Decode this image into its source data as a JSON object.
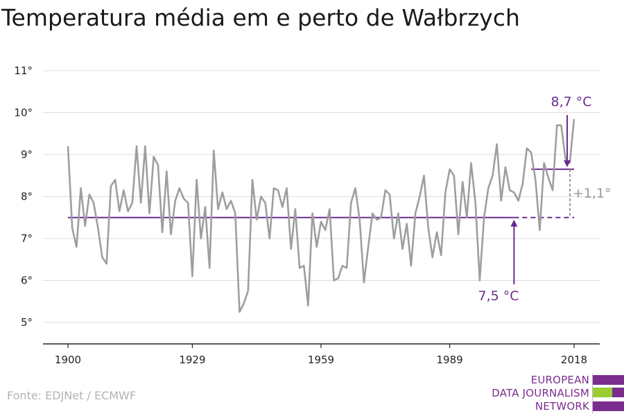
{
  "title": "Temperatura média em e perto de Wałbrzych",
  "source": "Fonte: EDJNet / ECMWF",
  "logo": {
    "lines": [
      "EUROPEAN",
      "DATA JOURNALISM",
      "NETWORK"
    ]
  },
  "colors": {
    "series": "#9e9e9e",
    "accent": "#6b2c91",
    "grid": "#dcdcdc",
    "axis": "#222222",
    "logo_purple": "#7b2d8e",
    "logo_green": "#9acd32"
  },
  "chart_data": {
    "type": "line",
    "x": [
      1900,
      1901,
      1902,
      1903,
      1904,
      1905,
      1906,
      1907,
      1908,
      1909,
      1910,
      1911,
      1912,
      1913,
      1914,
      1915,
      1916,
      1917,
      1918,
      1919,
      1920,
      1921,
      1922,
      1923,
      1924,
      1925,
      1926,
      1927,
      1928,
      1929,
      1930,
      1931,
      1932,
      1933,
      1934,
      1935,
      1936,
      1937,
      1938,
      1939,
      1940,
      1941,
      1942,
      1943,
      1944,
      1945,
      1946,
      1947,
      1948,
      1949,
      1950,
      1951,
      1952,
      1953,
      1954,
      1955,
      1956,
      1957,
      1958,
      1959,
      1960,
      1961,
      1962,
      1963,
      1964,
      1965,
      1966,
      1967,
      1968,
      1969,
      1970,
      1971,
      1972,
      1973,
      1974,
      1975,
      1976,
      1977,
      1978,
      1979,
      1980,
      1981,
      1982,
      1983,
      1984,
      1985,
      1986,
      1987,
      1988,
      1989,
      1990,
      1991,
      1992,
      1993,
      1994,
      1995,
      1996,
      1997,
      1998,
      1999,
      2000,
      2001,
      2002,
      2003,
      2004,
      2005,
      2006,
      2007,
      2008,
      2009,
      2010,
      2011,
      2012,
      2013,
      2014,
      2015,
      2016,
      2017,
      2018
    ],
    "series": [
      {
        "values": [
          9.2,
          7.25,
          6.8,
          8.2,
          7.3,
          8.05,
          7.85,
          7.25,
          6.55,
          6.4,
          8.25,
          8.4,
          7.65,
          8.15,
          7.65,
          7.85,
          9.2,
          7.85,
          9.2,
          7.6,
          8.95,
          8.75,
          7.15,
          8.6,
          7.1,
          7.9,
          8.2,
          7.95,
          7.85,
          6.1,
          8.4,
          7.0,
          7.75,
          6.3,
          9.1,
          7.7,
          8.1,
          7.7,
          7.9,
          7.6,
          5.25,
          5.45,
          5.75,
          8.4,
          7.45,
          8.0,
          7.85,
          7.0,
          8.2,
          8.15,
          7.75,
          8.2,
          6.75,
          7.7,
          6.3,
          6.35,
          5.4,
          7.6,
          6.8,
          7.4,
          7.2,
          7.7,
          6.0,
          6.05,
          6.35,
          6.3,
          7.85,
          8.2,
          7.45,
          5.95,
          6.8,
          7.6,
          7.45,
          7.5,
          8.15,
          8.05,
          7.0,
          7.6,
          6.75,
          7.35,
          6.35,
          7.6,
          8.0,
          8.5,
          7.25,
          6.55,
          7.15,
          6.6,
          8.1,
          8.65,
          8.5,
          7.1,
          8.35,
          7.5,
          8.8,
          7.85,
          6.0,
          7.5,
          8.2,
          8.5,
          9.25,
          7.9,
          8.7,
          8.15,
          8.1,
          7.9,
          8.3,
          9.15,
          9.05,
          8.4,
          7.2,
          8.8,
          8.45,
          8.15,
          9.7,
          9.7,
          8.9,
          8.8,
          9.85
        ]
      }
    ],
    "x_ticks": [
      1900,
      1929,
      1959,
      1989,
      2018
    ],
    "x_tick_labels": [
      "1900",
      "1929",
      "1959",
      "1989",
      "2018"
    ],
    "y_ticks": [
      5,
      6,
      7,
      8,
      9,
      10,
      11
    ],
    "y_tick_labels": [
      "5°",
      "6°",
      "7°",
      "8°",
      "9°",
      "10°",
      "11°"
    ],
    "xlim": [
      1900,
      2018
    ],
    "ylim": [
      4.6,
      11.3
    ],
    "grid": true,
    "reference": {
      "baseline_value": 7.5,
      "baseline_solid_x": [
        1900,
        2004
      ],
      "baseline_dashed_x": [
        2004,
        2018
      ],
      "recent_value": 8.65,
      "recent_x": [
        2008,
        2018
      ]
    },
    "annotations": {
      "recent_label": "8,7 °C",
      "baseline_label": "7,5 °C",
      "difference_label": "+1,1°"
    }
  }
}
